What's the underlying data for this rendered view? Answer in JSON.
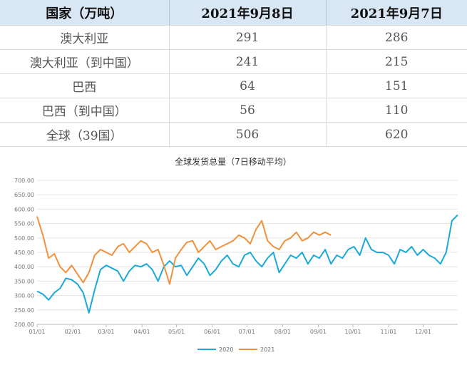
{
  "table": {
    "headers": [
      "国家（万吨）",
      "2021年9月8日",
      "2021年9月7日"
    ],
    "rows": [
      [
        "澳大利亚",
        "291",
        "286"
      ],
      [
        "澳大利亚（到中国）",
        "241",
        "215"
      ],
      [
        "巴西",
        "64",
        "151"
      ],
      [
        "巴西（到中国）",
        "56",
        "110"
      ],
      [
        "全球（39国）",
        "506",
        "620"
      ]
    ]
  },
  "chart_data": {
    "type": "line",
    "title": "全球发货总量（7日移动平均）",
    "x_tick_labels": [
      "01/01",
      "02/01",
      "03/01",
      "04/01",
      "05/01",
      "06/01",
      "07/01",
      "08/01",
      "09/01",
      "10/01",
      "11/01",
      "12/01"
    ],
    "y_tick_labels": [
      "200.00",
      "250.00",
      "300.00",
      "350.00",
      "400.00",
      "450.00",
      "500.00",
      "550.00",
      "600.00",
      "650.00",
      "700.00"
    ],
    "ylim": [
      200,
      700
    ],
    "grid": true,
    "legend_position": "bottom",
    "series": [
      {
        "name": "2020",
        "color": "#1aa9d8",
        "x": [
          "01/01",
          "01/06",
          "01/11",
          "01/16",
          "01/21",
          "01/26",
          "01/31",
          "02/05",
          "02/10",
          "02/15",
          "02/20",
          "02/25",
          "03/01",
          "03/06",
          "03/11",
          "03/16",
          "03/21",
          "03/26",
          "03/31",
          "04/05",
          "04/10",
          "04/15",
          "04/20",
          "04/25",
          "04/30",
          "05/05",
          "05/10",
          "05/15",
          "05/20",
          "05/25",
          "05/30",
          "06/04",
          "06/09",
          "06/14",
          "06/19",
          "06/24",
          "06/29",
          "07/04",
          "07/09",
          "07/14",
          "07/19",
          "07/24",
          "07/29",
          "08/03",
          "08/08",
          "08/13",
          "08/18",
          "08/23",
          "08/28",
          "09/02",
          "09/07",
          "09/12",
          "09/17",
          "09/22",
          "09/27",
          "10/02",
          "10/07",
          "10/12",
          "10/17",
          "10/22",
          "10/27",
          "11/01",
          "11/06",
          "11/11",
          "11/16",
          "11/21",
          "11/26",
          "12/01",
          "12/06",
          "12/11",
          "12/16",
          "12/21",
          "12/26",
          "12/31"
        ],
        "values": [
          315,
          305,
          285,
          310,
          325,
          360,
          355,
          340,
          310,
          240,
          320,
          390,
          405,
          395,
          385,
          350,
          385,
          405,
          400,
          410,
          390,
          350,
          400,
          420,
          400,
          405,
          370,
          400,
          430,
          410,
          370,
          390,
          420,
          440,
          410,
          400,
          440,
          450,
          420,
          400,
          430,
          450,
          380,
          410,
          440,
          430,
          450,
          410,
          440,
          430,
          460,
          410,
          440,
          430,
          460,
          470,
          440,
          500,
          460,
          450,
          450,
          440,
          410,
          460,
          450,
          470,
          440,
          460,
          440,
          430,
          410,
          450,
          560,
          580
        ]
      },
      {
        "name": "2021",
        "color": "#f0913c",
        "x": [
          "01/01",
          "01/06",
          "01/11",
          "01/16",
          "01/21",
          "01/26",
          "01/31",
          "02/05",
          "02/10",
          "02/15",
          "02/20",
          "02/25",
          "03/01",
          "03/06",
          "03/11",
          "03/16",
          "03/21",
          "03/26",
          "03/31",
          "04/05",
          "04/10",
          "04/15",
          "04/20",
          "04/25",
          "04/30",
          "05/05",
          "05/10",
          "05/15",
          "05/20",
          "05/25",
          "05/30",
          "06/04",
          "06/09",
          "06/14",
          "06/19",
          "06/24",
          "06/29",
          "07/04",
          "07/09",
          "07/14",
          "07/19",
          "07/24",
          "07/29",
          "08/03",
          "08/08",
          "08/13",
          "08/18",
          "08/23",
          "08/28",
          "09/02",
          "09/07",
          "09/12"
        ],
        "values": [
          575,
          510,
          430,
          445,
          400,
          380,
          405,
          375,
          345,
          380,
          440,
          460,
          450,
          440,
          470,
          480,
          450,
          470,
          490,
          480,
          450,
          460,
          405,
          340,
          430,
          460,
          485,
          490,
          450,
          470,
          490,
          460,
          470,
          480,
          490,
          510,
          500,
          480,
          530,
          560,
          490,
          470,
          460,
          490,
          500,
          520,
          490,
          500,
          520,
          510,
          520,
          510
        ]
      }
    ]
  }
}
